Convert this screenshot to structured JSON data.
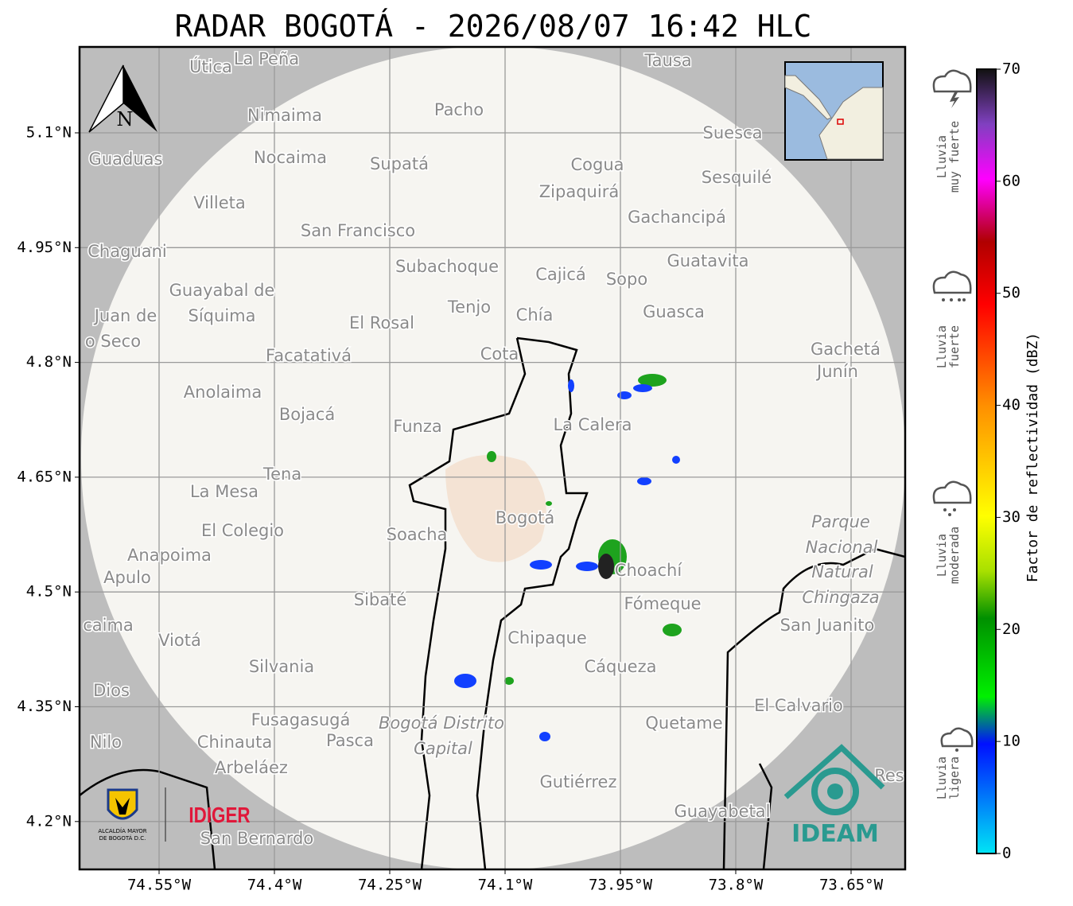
{
  "header": {
    "title": "RADAR BOGOTÁ - 2026/08/07 16:42 HLC"
  },
  "map": {
    "lon_ticks": [
      {
        "value": -74.55,
        "label": "74.55°W"
      },
      {
        "value": -74.4,
        "label": "74.4°W"
      },
      {
        "value": -74.25,
        "label": "74.25°W"
      },
      {
        "value": -74.1,
        "label": "74.1°W"
      },
      {
        "value": -73.95,
        "label": "73.95°W"
      },
      {
        "value": -73.8,
        "label": "73.8°W"
      },
      {
        "value": -73.65,
        "label": "73.65°W"
      }
    ],
    "lat_ticks": [
      {
        "value": 5.1,
        "label": "5.1°N"
      },
      {
        "value": 4.95,
        "label": "4.95°N"
      },
      {
        "value": 4.8,
        "label": "4.8°N"
      },
      {
        "value": 4.65,
        "label": "4.65°N"
      },
      {
        "value": 4.5,
        "label": "4.5°N"
      },
      {
        "value": 4.35,
        "label": "4.35°N"
      },
      {
        "value": 4.2,
        "label": "4.2°N"
      }
    ],
    "north": "N",
    "places": [
      "Útica",
      "La Peña",
      "Tausa",
      "Pacho",
      "Nimaima",
      "Guaduas",
      "Nocaima",
      "Supatá",
      "Cogua",
      "Suesca",
      "Sesquilé",
      "Zipaquirá",
      "Villeta",
      "Gachancipá",
      "San Francisco",
      "Chaguani",
      "Guatavita",
      "Subachoque",
      "Cajicá",
      "Sopo",
      "Guayabal de",
      "Síquima",
      "Juan de",
      "o Seco",
      "Tenjo",
      "Chía",
      "Guasca",
      "El Rosal",
      "Gachetá",
      "Junín",
      "Facatativá",
      "Cota",
      "Anolaima",
      "Bojacá",
      "La Calera",
      "Funza",
      "Tena",
      "La Mesa",
      "Bogotá",
      "Parque",
      "Nacional",
      "Natural",
      "Chingaza",
      "El Colegio",
      "Soacha",
      "Anapoima",
      "Apulo",
      "Choachí",
      "Sibaté",
      "Fómeque",
      "San Juanito",
      "caima",
      "Viotá",
      "Chipaque",
      "Silvania",
      "Cáqueza",
      "Dios",
      "El Calvario",
      "Fusagasugá",
      "Bogotá Distrito",
      "Capital",
      "Quetame",
      "Nilo",
      "Chinauta",
      "Pasca",
      "Arbeláez",
      "Gutiérrez",
      "Res",
      "Guayabetal",
      "San Bernardo"
    ]
  },
  "logos": {
    "idiger": "IDIGER",
    "alcaldia": [
      "ALCALDÍA MAYOR",
      "DE BOGOTÁ D.C."
    ],
    "ideam": "IDEAM"
  },
  "colorbar": {
    "label": "Factor de reflectividad (dBZ)",
    "range": [
      0,
      70
    ],
    "ticks": [
      0,
      10,
      20,
      30,
      40,
      50,
      60,
      70
    ]
  },
  "rain_legend": [
    [
      "Lluvia",
      "muy fuerte"
    ],
    [
      "Lluvia",
      "fuerte"
    ],
    [
      "Lluvia",
      "moderada"
    ],
    [
      "Lluvia",
      "ligera"
    ]
  ]
}
